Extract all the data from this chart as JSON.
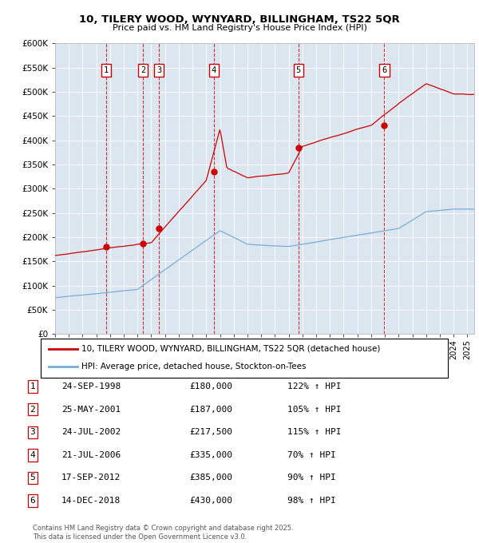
{
  "title": "10, TILERY WOOD, WYNYARD, BILLINGHAM, TS22 5QR",
  "subtitle": "Price paid vs. HM Land Registry's House Price Index (HPI)",
  "ylim": [
    0,
    600000
  ],
  "yticks": [
    0,
    50000,
    100000,
    150000,
    200000,
    250000,
    300000,
    350000,
    400000,
    450000,
    500000,
    550000,
    600000
  ],
  "ytick_labels": [
    "£0",
    "£50K",
    "£100K",
    "£150K",
    "£200K",
    "£250K",
    "£300K",
    "£350K",
    "£400K",
    "£450K",
    "£500K",
    "£550K",
    "£600K"
  ],
  "xlim_start": 1995.0,
  "xlim_end": 2025.5,
  "background_color": "#dce6f1",
  "plot_bg_color": "#dce6f1",
  "red_line_color": "#cc0000",
  "blue_line_color": "#7aadd4",
  "grid_color": "#ffffff",
  "sale_markers": [
    {
      "num": 1,
      "year": 1998.73,
      "price": 180000
    },
    {
      "num": 2,
      "year": 2001.39,
      "price": 187000
    },
    {
      "num": 3,
      "year": 2002.56,
      "price": 217500
    },
    {
      "num": 4,
      "year": 2006.55,
      "price": 335000
    },
    {
      "num": 5,
      "year": 2012.71,
      "price": 385000
    },
    {
      "num": 6,
      "year": 2018.96,
      "price": 430000
    }
  ],
  "legend_entries": [
    "10, TILERY WOOD, WYNYARD, BILLINGHAM, TS22 5QR (detached house)",
    "HPI: Average price, detached house, Stockton-on-Tees"
  ],
  "table_data": [
    {
      "num": 1,
      "date": "24-SEP-1998",
      "price": "£180,000",
      "hpi": "122% ↑ HPI"
    },
    {
      "num": 2,
      "date": "25-MAY-2001",
      "price": "£187,000",
      "hpi": "105% ↑ HPI"
    },
    {
      "num": 3,
      "date": "24-JUL-2002",
      "price": "£217,500",
      "hpi": "115% ↑ HPI"
    },
    {
      "num": 4,
      "date": "21-JUL-2006",
      "price": "£335,000",
      "hpi": "70% ↑ HPI"
    },
    {
      "num": 5,
      "date": "17-SEP-2012",
      "price": "£385,000",
      "hpi": "90% ↑ HPI"
    },
    {
      "num": 6,
      "date": "14-DEC-2018",
      "price": "£430,000",
      "hpi": "98% ↑ HPI"
    }
  ],
  "footer": "Contains HM Land Registry data © Crown copyright and database right 2025.\nThis data is licensed under the Open Government Licence v3.0."
}
